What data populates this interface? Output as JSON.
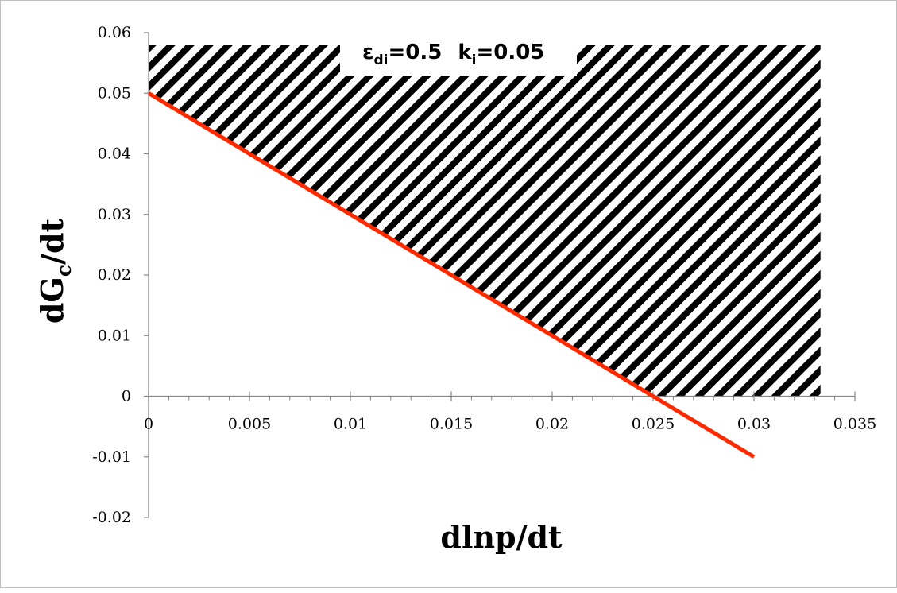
{
  "chart_data": {
    "type": "line",
    "xlabel": "dlnp/dt",
    "ylabel_main": "dG",
    "ylabel_sub": "c",
    "ylabel_tail": "/dt",
    "xlim": [
      0,
      0.035
    ],
    "ylim": [
      -0.02,
      0.06
    ],
    "x_ticks": [
      0,
      0.005,
      0.01,
      0.015,
      0.02,
      0.025,
      0.03,
      0.035
    ],
    "x_tick_labels": [
      "0",
      "0.005",
      "0.01",
      "0.015",
      "0.02",
      "0.025",
      "0.03",
      "0.035"
    ],
    "y_ticks": [
      -0.02,
      -0.01,
      0,
      0.01,
      0.02,
      0.03,
      0.04,
      0.05,
      0.06
    ],
    "y_tick_labels": [
      "-0.02",
      "-0.01",
      "0",
      "0.01",
      "0.02",
      "0.03",
      "0.04",
      "0.05",
      "0.06"
    ],
    "series": [
      {
        "color": "#ff2a00",
        "x": [
          0,
          0.03
        ],
        "y": [
          0.05,
          -0.01
        ]
      }
    ],
    "shaded_region": {
      "pattern": "diagonal hatch",
      "color": "#000000",
      "x_range": [
        0,
        0.0333
      ],
      "y_top": 0.058,
      "bounded_below_by": "line and y = 0"
    },
    "annotation": {
      "eps_symbol": "ε",
      "eps_sub": "di",
      "eps_value": "=0.5",
      "k_symbol": "k",
      "k_sub": "i",
      "k_value": "=0.05"
    },
    "grid": false,
    "legend": "none"
  }
}
